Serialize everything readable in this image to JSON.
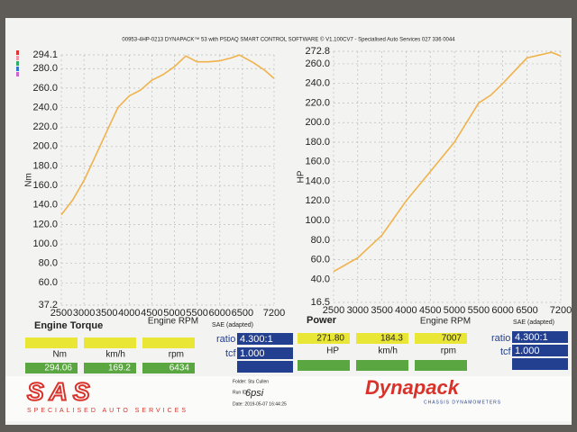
{
  "header": "00953-4HP-0213 DYNAPACK™ 53 with PSDAQ SMART CONTROL SOFTWARE © V1.100CV7 - Specialised Auto Services 027 336 0044",
  "chart_data": [
    {
      "type": "line",
      "title": "Engine Torque",
      "xlabel": "Engine RPM",
      "ylabel": "Nm",
      "x": [
        2500,
        2750,
        3000,
        3250,
        3500,
        3750,
        4000,
        4250,
        4500,
        4750,
        5000,
        5250,
        5500,
        5750,
        6000,
        6250,
        6434,
        6750,
        7000,
        7200
      ],
      "series": [
        {
          "color": "#f0b24a",
          "values": [
            130,
            145,
            165,
            190,
            215,
            240,
            252,
            258,
            268,
            274,
            282,
            293,
            287,
            287,
            288,
            291,
            294,
            286,
            278,
            270
          ]
        }
      ],
      "xlim": [
        2500,
        7200
      ],
      "xticks": [
        2500,
        3000,
        3500,
        4000,
        4500,
        5000,
        5500,
        6000,
        6500,
        7200
      ],
      "ylim": [
        37.2,
        294.1
      ],
      "yticks": [
        37.2,
        {
          "value": 60,
          "label": "60.0"
        },
        {
          "value": 80,
          "label": "80.0"
        },
        {
          "value": 100,
          "label": "100.0"
        },
        {
          "value": 120,
          "label": "120.0"
        },
        {
          "value": 140,
          "label": "140.0"
        },
        {
          "value": 160,
          "label": "160.0"
        },
        {
          "value": 180,
          "label": "180.0"
        },
        {
          "value": 200,
          "label": "200.0"
        },
        {
          "value": 220,
          "label": "220.0"
        },
        {
          "value": 240,
          "label": "240.0"
        },
        {
          "value": 260,
          "label": "260.0"
        },
        {
          "value": 280,
          "label": "280.0"
        },
        294.1
      ],
      "grid": true
    },
    {
      "type": "line",
      "title": "Power",
      "xlabel": "Engine RPM",
      "ylabel": "HP",
      "x": [
        2500,
        3000,
        3500,
        4000,
        4500,
        5000,
        5500,
        5750,
        6000,
        6500,
        7007,
        7200
      ],
      "series": [
        {
          "color": "#f0b24a",
          "values": [
            48,
            62,
            85,
            120,
            150,
            180,
            220,
            228,
            240,
            266,
            271.8,
            268
          ]
        }
      ],
      "xlim": [
        2500,
        7200
      ],
      "xticks": [
        2500,
        3000,
        3500,
        4000,
        4500,
        5000,
        5500,
        6000,
        6500,
        7200
      ],
      "ylim": [
        16.5,
        272.8
      ],
      "yticks": [
        16.5,
        {
          "value": 40,
          "label": "40.0"
        },
        {
          "value": 60,
          "label": "60.0"
        },
        {
          "value": 80,
          "label": "80.0"
        },
        {
          "value": 100,
          "label": "100.0"
        },
        {
          "value": 120,
          "label": "120.0"
        },
        {
          "value": 140,
          "label": "140.0"
        },
        {
          "value": 160,
          "label": "160.0"
        },
        {
          "value": 180,
          "label": "180.0"
        },
        {
          "value": 200,
          "label": "200.0"
        },
        {
          "value": 220,
          "label": "220.0"
        },
        {
          "value": 240,
          "label": "240.0"
        },
        {
          "value": 260,
          "label": "260.0"
        },
        272.8
      ],
      "grid": true
    }
  ],
  "panels": [
    {
      "sae": "SAE (adapted)",
      "values": [
        "294.06",
        "169.2",
        "6434"
      ],
      "units": [
        "Nm",
        "km/h",
        "rpm"
      ],
      "ratio_label": "ratio",
      "ratio": "4.300:1",
      "tcf_label": "tcf",
      "tcf": "1.000"
    },
    {
      "sae": "SAE (adapted)",
      "values": [
        "271.80",
        "184.3",
        "7007"
      ],
      "units": [
        "HP",
        "km/h",
        "rpm"
      ],
      "ratio_label": "ratio",
      "ratio": "4.300:1",
      "tcf_label": "tcf",
      "tcf": "1.000"
    }
  ],
  "footer": {
    "logo": "SAS",
    "tagline": "SPECIALISED AUTO SERVICES",
    "folder": "Folder: Stu Cullen",
    "run": "Run ID:",
    "note": "6psi",
    "date": "Date: 2019-05-07 16:44:25",
    "brand": "Dynapack",
    "brand_sub": "CHASSIS DYNAMOMETERS"
  }
}
